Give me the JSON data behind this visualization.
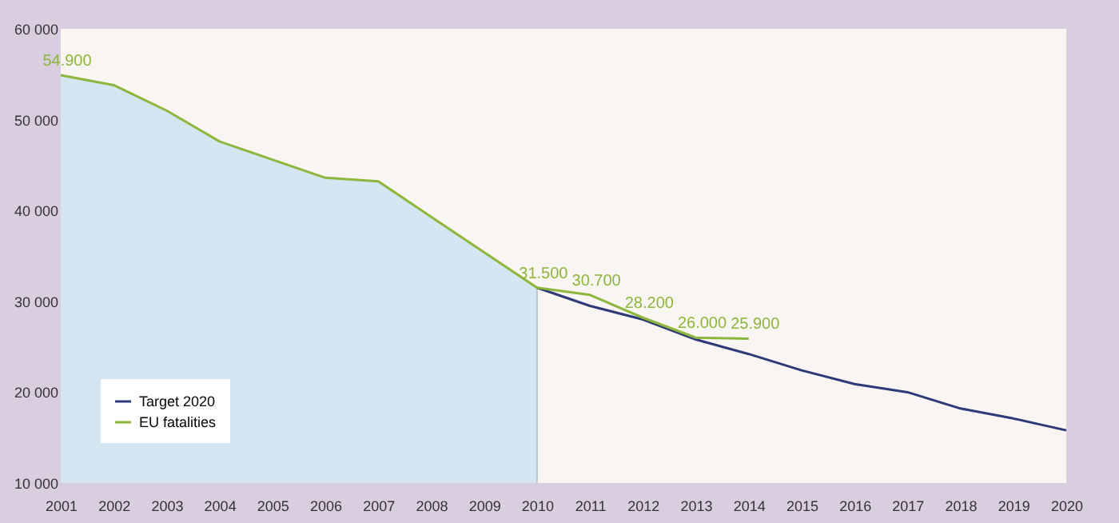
{
  "chart_data": {
    "type": "line",
    "series": [
      {
        "type": "area",
        "color": "#d3e6f2",
        "x": [
          2001,
          2002,
          2003,
          2004,
          2005,
          2006,
          2007,
          2008,
          2009,
          2010
        ],
        "values": [
          54900,
          53800,
          51000,
          47600,
          45600,
          43600,
          43200,
          39300,
          35400,
          31500
        ]
      },
      {
        "name": "Target 2020",
        "color": "#2e3a78",
        "x": [
          2010,
          2011,
          2012,
          2013,
          2014,
          2015,
          2016,
          2017,
          2018,
          2019,
          2020
        ],
        "values": [
          31500,
          29500,
          28000,
          25800,
          24200,
          22400,
          20900,
          20000,
          18200,
          17100,
          15800
        ]
      },
      {
        "name": "EU fatalities",
        "color": "#8db63c",
        "x": [
          2001,
          2002,
          2003,
          2004,
          2005,
          2006,
          2007,
          2008,
          2009,
          2010,
          2011,
          2012,
          2013,
          2014
        ],
        "values": [
          54900,
          53800,
          51000,
          47600,
          45600,
          43600,
          43200,
          39300,
          35400,
          31500,
          30700,
          28200,
          26000,
          25900
        ],
        "value_labels": [
          "54.900",
          null,
          null,
          null,
          null,
          null,
          null,
          null,
          null,
          "31.500",
          "30.700",
          "28.200",
          "26.000",
          "25.900"
        ]
      }
    ],
    "xlim": [
      2001,
      2020
    ],
    "xticks": [
      2001,
      2002,
      2003,
      2004,
      2005,
      2006,
      2007,
      2008,
      2009,
      2010,
      2011,
      2012,
      2013,
      2014,
      2015,
      2016,
      2017,
      2018,
      2019,
      2020
    ],
    "ylim": [
      10000,
      60000
    ],
    "yticks": [
      {
        "value": 10000,
        "label": "10 000"
      },
      {
        "value": 20000,
        "label": "20 000"
      },
      {
        "value": 30000,
        "label": "30 000"
      },
      {
        "value": 40000,
        "label": "40 000"
      },
      {
        "value": 50000,
        "label": "50 000"
      },
      {
        "value": 60000,
        "label": "60 000"
      }
    ],
    "legend": "bottom left",
    "line_style": "solid",
    "marker": "none"
  }
}
